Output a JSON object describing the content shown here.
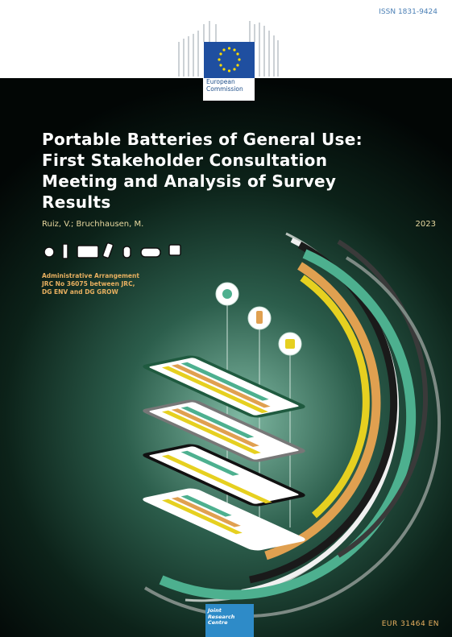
{
  "header": {
    "issn": "ISSN 1831-9424",
    "logo": [
      "European",
      "Commission"
    ]
  },
  "title": [
    "Portable Batteries of General Use:",
    "First Stakeholder Consultation",
    "Meeting and Analysis of Survey",
    "Results"
  ],
  "authors": "Ruiz, V.; Bruchhausen, M.",
  "year": "2023",
  "arrangement": "Administrative Arrangement JRC No 36075 between JRC, DG ENV and DG GROW",
  "footer": {
    "logo": [
      "Joint",
      "Research",
      "Centre"
    ],
    "report_number": "EUR 31464 EN"
  }
}
